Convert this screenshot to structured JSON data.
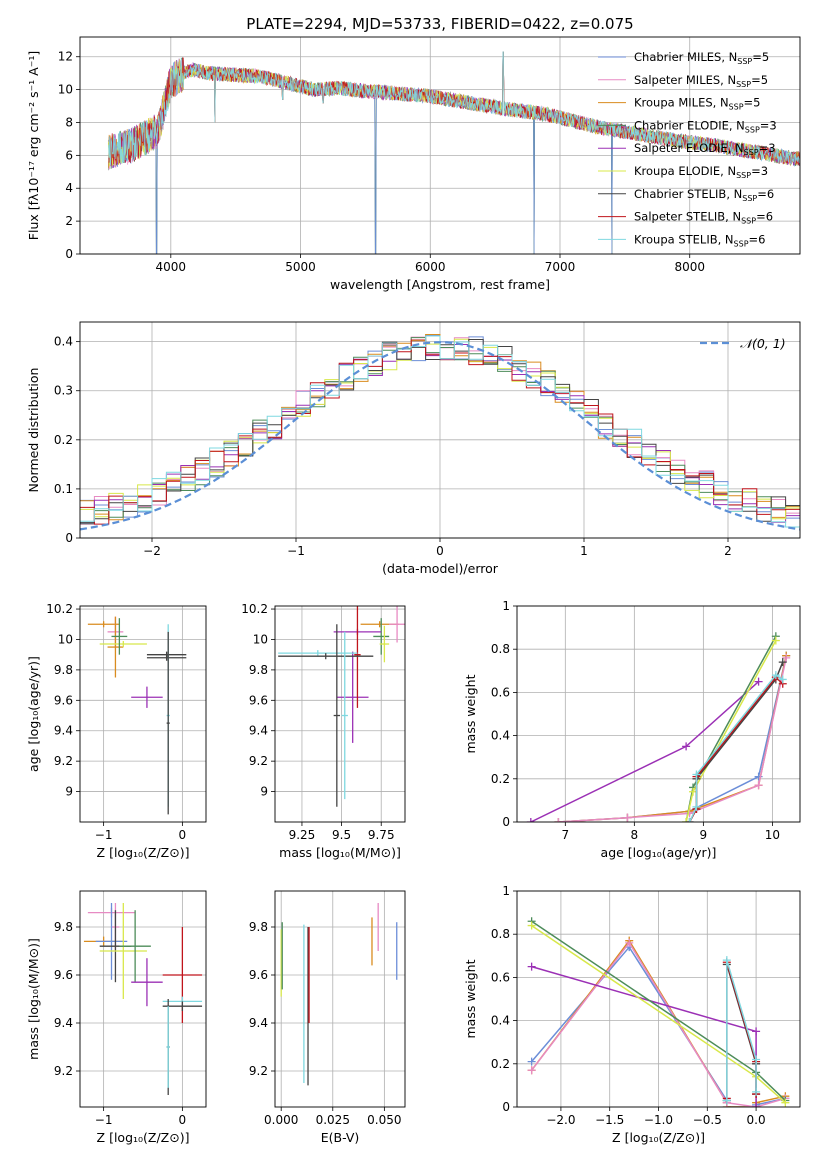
{
  "chart_data": [
    {
      "type": "line",
      "title": "PLATE=2294, MJD=53733, FIBERID=0422, z=0.075",
      "xlabel": "wavelength [Angstrom, rest frame]",
      "ylabel": "Flux [fλ10⁻¹⁷ erg cm⁻² s⁻¹ A⁻¹]",
      "xlim": [
        3300,
        8850
      ],
      "ylim": [
        0,
        13.2
      ],
      "xticks": [
        4000,
        5000,
        6000,
        7000,
        8000
      ],
      "yticks": [
        0,
        2,
        4,
        6,
        8,
        10,
        12
      ],
      "legend_position": "upper-right",
      "series": [
        {
          "name": "Chabrier MILES, N",
          "sub": "SSP",
          "suffix": "=5",
          "color": "#6c8ed8"
        },
        {
          "name": "Salpeter MILES, N",
          "sub": "SSP",
          "suffix": "=5",
          "color": "#e78ac3"
        },
        {
          "name": "Kroupa MILES, N",
          "sub": "SSP",
          "suffix": "=5",
          "color": "#d98c1f"
        },
        {
          "name": "Chabrier ELODIE, N",
          "sub": "SSP",
          "suffix": "=3",
          "color": "#4d8c5a"
        },
        {
          "name": "Salpeter ELODIE, N",
          "sub": "SSP",
          "suffix": "=3",
          "color": "#9b30b5"
        },
        {
          "name": "Kroupa ELODIE, N",
          "sub": "SSP",
          "suffix": "=3",
          "color": "#d8e84a"
        },
        {
          "name": "Chabrier STELIB, N",
          "sub": "SSP",
          "suffix": "=6",
          "color": "#444444"
        },
        {
          "name": "Salpeter STELIB, N",
          "sub": "SSP",
          "suffix": "=6",
          "color": "#c0141c"
        },
        {
          "name": "Kroupa STELIB, N",
          "sub": "SSP",
          "suffix": "=6",
          "color": "#7fd8e0"
        }
      ],
      "continuum_x": [
        3520,
        3700,
        3900,
        4000,
        4150,
        4300,
        4500,
        4700,
        4900,
        5100,
        5300,
        5500,
        5700,
        6000,
        6300,
        6600,
        6900,
        7100,
        7300,
        7600,
        7900,
        8200,
        8500,
        8800
      ],
      "continuum_y": [
        6.2,
        6.6,
        7.5,
        10.5,
        11.2,
        11.0,
        10.9,
        10.8,
        10.4,
        10.0,
        10.1,
        9.9,
        9.8,
        9.6,
        9.2,
        8.8,
        8.5,
        8.1,
        7.7,
        7.3,
        6.9,
        6.6,
        6.2,
        5.8
      ],
      "features": [
        {
          "x": 3890,
          "y": 0.0
        },
        {
          "x": 4340,
          "y": 8.0
        },
        {
          "x": 4861,
          "y": 9.4
        },
        {
          "x": 5175,
          "y": 9.2
        },
        {
          "x": 5577,
          "y": 0.0
        },
        {
          "x": 6563,
          "y": 12.3
        },
        {
          "x": 6800,
          "y": 0.0
        },
        {
          "x": 7400,
          "y": 0.0
        }
      ]
    },
    {
      "type": "histogram",
      "xlabel": "(data-model)/error",
      "ylabel": "Normed distribution",
      "xlim": [
        -2.5,
        2.5
      ],
      "ylim": [
        0,
        0.44
      ],
      "xticks": [
        -2,
        -1,
        0,
        1,
        2
      ],
      "yticks": [
        0.0,
        0.1,
        0.2,
        0.3,
        0.4
      ],
      "bin_edges_start": -2.5,
      "bin_width": 0.1,
      "reference_curve": {
        "name": "𝒩(0, 1)",
        "mean": 0,
        "sigma": 1,
        "color": "#5b8fd6",
        "style": "dashed"
      },
      "legend_position": "upper-right",
      "series_colors": [
        "#6c8ed8",
        "#e78ac3",
        "#d98c1f",
        "#4d8c5a",
        "#9b30b5",
        "#d8e84a",
        "#444444",
        "#c0141c",
        "#7fd8e0"
      ]
    },
    {
      "type": "errorbar",
      "xlabel": "Z [log₁₀(Z/Z⊙)]",
      "ylabel": "age  [log₁₀(age/yr)]",
      "xlim": [
        -1.3,
        0.3
      ],
      "ylim": [
        8.8,
        10.22
      ],
      "xticks": [
        -1,
        0
      ],
      "yticks": [
        9.0,
        9.2,
        9.4,
        9.6,
        9.8,
        10.0,
        10.2
      ],
      "points": [
        {
          "x": -1.0,
          "xerr": 0.2,
          "y": 10.1,
          "yerr": 0.02,
          "color": "#d98c1f"
        },
        {
          "x": -0.85,
          "xerr": 0.1,
          "y": 10.05,
          "yerr": 0.1,
          "color": "#e78ac3"
        },
        {
          "x": -0.85,
          "xerr": 0.1,
          "y": 9.95,
          "yerr": 0.2,
          "color": "#d98c1f"
        },
        {
          "x": -0.75,
          "xerr": 0.3,
          "y": 9.97,
          "yerr": 0.02,
          "color": "#d8e84a"
        },
        {
          "x": -0.8,
          "xerr": 0.1,
          "y": 10.02,
          "yerr": 0.12,
          "color": "#4d8c5a"
        },
        {
          "x": -0.45,
          "xerr": 0.2,
          "y": 9.62,
          "yerr": 0.07,
          "color": "#9b30b5"
        },
        {
          "x": -0.2,
          "xerr": 0.25,
          "y": 9.9,
          "yerr": 0.02,
          "color": "#444444"
        },
        {
          "x": -0.2,
          "xerr": 0.25,
          "y": 9.88,
          "yerr": 0.02,
          "color": "#444444"
        },
        {
          "x": -0.18,
          "xerr": 0.02,
          "y": 9.5,
          "yerr": 0.6,
          "color": "#7fd8e0"
        },
        {
          "x": -0.18,
          "xerr": 0.02,
          "y": 9.45,
          "yerr": 0.6,
          "color": "#444444"
        }
      ]
    },
    {
      "type": "errorbar",
      "xlabel": "mass [log₁₀(M/M⊙)]",
      "ylabel": "",
      "xlim": [
        9.08,
        9.9
      ],
      "ylim": [
        8.8,
        10.22
      ],
      "xticks": [
        9.25,
        9.5,
        9.75
      ],
      "yticks": [
        9.0,
        9.2,
        9.4,
        9.6,
        9.8,
        10.0,
        10.2
      ],
      "points": [
        {
          "x": 9.74,
          "xerr": 0.12,
          "y": 10.1,
          "yerr": 0.02,
          "color": "#d98c1f"
        },
        {
          "x": 9.85,
          "xerr": 0.05,
          "y": 10.1,
          "yerr": 0.12,
          "color": "#e78ac3"
        },
        {
          "x": 9.75,
          "xerr": 0.05,
          "y": 10.02,
          "yerr": 0.12,
          "color": "#4d8c5a"
        },
        {
          "x": 9.77,
          "xerr": 0.03,
          "y": 9.97,
          "yerr": 0.12,
          "color": "#d8e84a"
        },
        {
          "x": 9.6,
          "xerr": 0.15,
          "y": 10.05,
          "yerr": 0.02,
          "color": "#9b30b5"
        },
        {
          "x": 9.57,
          "xerr": 0.1,
          "y": 9.62,
          "yerr": 0.3,
          "color": "#9b30b5"
        },
        {
          "x": 9.6,
          "xerr": 0.02,
          "y": 9.9,
          "yerr": 0.35,
          "color": "#c0141c"
        },
        {
          "x": 9.35,
          "xerr": 0.25,
          "y": 9.91,
          "yerr": 0.02,
          "color": "#7fd8e0"
        },
        {
          "x": 9.47,
          "xerr": 0.02,
          "y": 9.5,
          "yerr": 0.6,
          "color": "#444444"
        },
        {
          "x": 9.4,
          "xerr": 0.3,
          "y": 9.89,
          "yerr": 0.02,
          "color": "#444444"
        },
        {
          "x": 9.52,
          "xerr": 0.02,
          "y": 9.5,
          "yerr": 0.55,
          "color": "#7fd8e0"
        }
      ]
    },
    {
      "type": "line",
      "xlabel": "age  [log₁₀(age/yr)]",
      "ylabel": "mass weight",
      "xlim": [
        6.3,
        10.4
      ],
      "ylim": [
        0,
        1.0
      ],
      "xticks": [
        7,
        8,
        9,
        10
      ],
      "yticks": [
        0.0,
        0.2,
        0.4,
        0.6,
        0.8,
        1.0
      ],
      "series": [
        {
          "color": "#6c8ed8",
          "x": [
            6.9,
            7.9,
            8.8,
            9.8,
            10.2
          ],
          "y": [
            0.0,
            0.02,
            0.05,
            0.21,
            0.77
          ]
        },
        {
          "color": "#d98c1f",
          "x": [
            6.9,
            7.9,
            8.8,
            9.8,
            10.2
          ],
          "y": [
            0.0,
            0.02,
            0.05,
            0.17,
            0.77
          ]
        },
        {
          "color": "#e78ac3",
          "x": [
            6.9,
            7.9,
            8.8,
            9.8,
            10.2
          ],
          "y": [
            0.0,
            0.02,
            0.04,
            0.17,
            0.76
          ]
        },
        {
          "color": "#9b30b5",
          "x": [
            6.5,
            8.75,
            9.8
          ],
          "y": [
            0.0,
            0.35,
            0.65
          ]
        },
        {
          "color": "#4d8c5a",
          "x": [
            8.75,
            8.85,
            10.05
          ],
          "y": [
            0.0,
            0.16,
            0.86
          ]
        },
        {
          "color": "#d8e84a",
          "x": [
            8.75,
            8.85,
            10.05
          ],
          "y": [
            0.0,
            0.14,
            0.84
          ]
        },
        {
          "color": "#444444",
          "x": [
            8.8,
            8.9,
            8.9,
            10.05,
            10.15
          ],
          "y": [
            0.0,
            0.06,
            0.2,
            0.66,
            0.74
          ]
        },
        {
          "color": "#c0141c",
          "x": [
            8.8,
            8.9,
            8.9,
            10.05,
            10.15
          ],
          "y": [
            0.0,
            0.06,
            0.21,
            0.67,
            0.64
          ]
        },
        {
          "color": "#7fd8e0",
          "x": [
            8.8,
            8.9,
            8.9,
            10.05,
            10.15
          ],
          "y": [
            0.0,
            0.07,
            0.22,
            0.68,
            0.66
          ]
        }
      ]
    },
    {
      "type": "errorbar",
      "xlabel": "Z [log₁₀(Z/Z⊙)]",
      "ylabel": "mass [log₁₀(M/M⊙)]",
      "xlim": [
        -1.3,
        0.3
      ],
      "ylim": [
        9.05,
        9.95
      ],
      "xticks": [
        -1,
        0
      ],
      "yticks": [
        9.2,
        9.4,
        9.6,
        9.8
      ],
      "points": [
        {
          "x": -0.9,
          "xerr": 0.3,
          "y": 9.86,
          "yerr": 0.02,
          "color": "#e78ac3"
        },
        {
          "x": -0.85,
          "xerr": 0.05,
          "y": 9.8,
          "yerr": 0.1,
          "color": "#e78ac3"
        },
        {
          "x": -1.0,
          "xerr": 0.25,
          "y": 9.74,
          "yerr": 0.02,
          "color": "#d98c1f"
        },
        {
          "x": -0.9,
          "xerr": 0.2,
          "y": 9.74,
          "yerr": 0.16,
          "color": "#6c8ed8"
        },
        {
          "x": -0.85,
          "xerr": 0.2,
          "y": 9.72,
          "yerr": 0.15,
          "color": "#444444"
        },
        {
          "x": -0.75,
          "xerr": 0.3,
          "y": 9.7,
          "yerr": 0.2,
          "color": "#d8e84a"
        },
        {
          "x": -0.6,
          "xerr": 0.2,
          "y": 9.72,
          "yerr": 0.15,
          "color": "#4d8c5a"
        },
        {
          "x": -0.45,
          "xerr": 0.2,
          "y": 9.57,
          "yerr": 0.1,
          "color": "#9b30b5"
        },
        {
          "x": 0.0,
          "xerr": 0.25,
          "y": 9.6,
          "yerr": 0.2,
          "color": "#c0141c"
        },
        {
          "x": 0.0,
          "xerr": 0.25,
          "y": 9.49,
          "yerr": 0.02,
          "color": "#7fd8e0"
        },
        {
          "x": 0.0,
          "xerr": 0.25,
          "y": 9.47,
          "yerr": 0.02,
          "color": "#444444"
        },
        {
          "x": -0.18,
          "xerr": 0.02,
          "y": 9.3,
          "yerr": 0.2,
          "color": "#444444"
        },
        {
          "x": -0.18,
          "xerr": 0.02,
          "y": 9.3,
          "yerr": 0.17,
          "color": "#7fd8e0"
        }
      ]
    },
    {
      "type": "errorbar",
      "xlabel": "E(B-V)",
      "ylabel": "",
      "xlim": [
        -0.003,
        0.06
      ],
      "ylim": [
        9.05,
        9.95
      ],
      "xticks": [
        0.0,
        0.025,
        0.05
      ],
      "xticklabels": [
        "0.000",
        "0.025",
        "0.050"
      ],
      "yticks": [
        9.2,
        9.4,
        9.6,
        9.8
      ],
      "points": [
        {
          "x": 0.0,
          "xerr": 0.0,
          "y": 9.65,
          "yerr": 0.14,
          "color": "#d8e84a"
        },
        {
          "x": 0.0005,
          "xerr": 0.0,
          "y": 9.68,
          "yerr": 0.14,
          "color": "#4d8c5a"
        },
        {
          "x": 0.011,
          "xerr": 0.0,
          "y": 9.48,
          "yerr": 0.33,
          "color": "#7fd8e0"
        },
        {
          "x": 0.013,
          "xerr": 0.0,
          "y": 9.47,
          "yerr": 0.33,
          "color": "#444444"
        },
        {
          "x": 0.0135,
          "xerr": 0.0,
          "y": 9.6,
          "yerr": 0.2,
          "color": "#c0141c"
        },
        {
          "x": 0.044,
          "xerr": 0.0,
          "y": 9.74,
          "yerr": 0.1,
          "color": "#d98c1f"
        },
        {
          "x": 0.047,
          "xerr": 0.0,
          "y": 9.8,
          "yerr": 0.1,
          "color": "#e78ac3"
        },
        {
          "x": 0.056,
          "xerr": 0.0,
          "y": 9.7,
          "yerr": 0.12,
          "color": "#6c8ed8"
        }
      ]
    },
    {
      "type": "line",
      "xlabel": "Z [log₁₀(Z/Z⊙)]",
      "ylabel": "mass weight",
      "xlim": [
        -2.45,
        0.45
      ],
      "ylim": [
        0,
        1.0
      ],
      "xticks": [
        -2.0,
        -1.5,
        -1.0,
        -0.5,
        0.0
      ],
      "xticklabels": [
        "−2.0",
        "−1.5",
        "−1.0",
        "−0.5",
        "0.0"
      ],
      "yticks": [
        0.0,
        0.2,
        0.4,
        0.6,
        0.8,
        1.0
      ],
      "series": [
        {
          "color": "#6c8ed8",
          "x": [
            -2.3,
            -1.3,
            -0.3,
            -0.3,
            0.0,
            0.0,
            0.3
          ],
          "y": [
            0.21,
            0.74,
            0.03,
            0.0,
            0.0,
            0.01,
            0.04
          ]
        },
        {
          "color": "#d98c1f",
          "x": [
            -2.3,
            -1.3,
            -0.3,
            -0.3,
            0.0,
            0.0,
            0.3
          ],
          "y": [
            0.17,
            0.77,
            0.02,
            0.0,
            0.0,
            0.02,
            0.05
          ]
        },
        {
          "color": "#e78ac3",
          "x": [
            -2.3,
            -1.3,
            -0.3,
            0.0,
            0.3
          ],
          "y": [
            0.17,
            0.76,
            0.02,
            0.0,
            0.04
          ]
        },
        {
          "color": "#9b30b5",
          "x": [
            -2.3,
            0.0,
            0.0
          ],
          "y": [
            0.65,
            0.35,
            0.0
          ]
        },
        {
          "color": "#4d8c5a",
          "x": [
            -2.3,
            0.0,
            0.3
          ],
          "y": [
            0.86,
            0.16,
            0.03
          ]
        },
        {
          "color": "#d8e84a",
          "x": [
            -2.3,
            0.0,
            0.3
          ],
          "y": [
            0.84,
            0.14,
            0.02
          ]
        },
        {
          "color": "#444444",
          "x": [
            -0.3,
            -0.3,
            0.0,
            0.0
          ],
          "y": [
            0.03,
            0.66,
            0.2,
            0.06
          ]
        },
        {
          "color": "#c0141c",
          "x": [
            -0.3,
            -0.3,
            0.0,
            0.0
          ],
          "y": [
            0.04,
            0.67,
            0.21,
            0.06
          ]
        },
        {
          "color": "#7fd8e0",
          "x": [
            -0.3,
            -0.3,
            0.0,
            0.0
          ],
          "y": [
            0.03,
            0.68,
            0.22,
            0.07
          ]
        }
      ]
    }
  ]
}
